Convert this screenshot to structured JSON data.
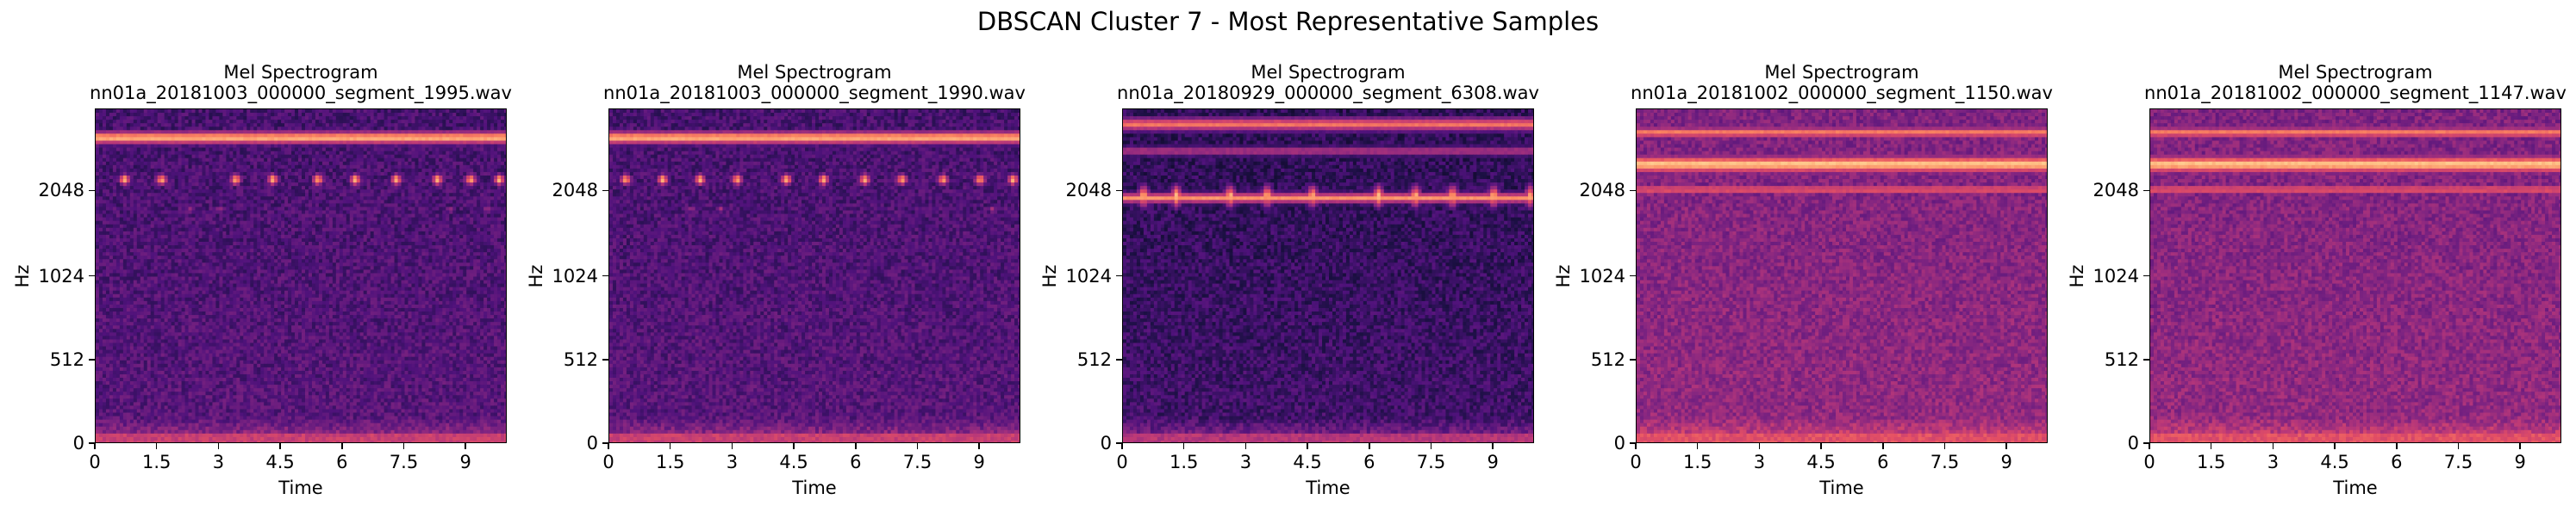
{
  "figure": {
    "suptitle": "DBSCAN Cluster 7 - Most Representative Samples"
  },
  "chart_data": [
    {
      "type": "heatmap",
      "title": "Mel Spectrogram",
      "subtitle": "nn01a_20181003_000000_segment_1995.wav",
      "xlabel": "Time",
      "ylabel": "Hz",
      "xticks": [
        "0",
        "1.5",
        "3",
        "4.5",
        "6",
        "7.5",
        "9"
      ],
      "xtick_values": [
        0,
        1.5,
        3,
        4.5,
        6,
        7.5,
        9
      ],
      "xlim": [
        0,
        10
      ],
      "yticks": [
        "0",
        "512",
        "1024",
        "2048"
      ],
      "colormap": "magma",
      "bands": [
        {
          "y": 0.915,
          "h": 0.045,
          "intensity": 0.92,
          "pulsed": false
        },
        {
          "y": 0.79,
          "h": 0.04,
          "intensity": 0.97,
          "pulsed": true,
          "pulse_times": [
            0.7,
            1.6,
            3.4,
            4.3,
            5.4,
            6.3,
            7.3,
            8.3,
            9.1,
            9.8
          ]
        },
        {
          "y": 0.7,
          "h": 0.02,
          "intensity": 0.55,
          "pulsed": true,
          "pulse_times": [
            2.3,
            3.0,
            8.6,
            9.5
          ]
        }
      ],
      "background": 0.28,
      "low_band": 0.55
    },
    {
      "type": "heatmap",
      "title": "Mel Spectrogram",
      "subtitle": "nn01a_20181003_000000_segment_1990.wav",
      "xlabel": "Time",
      "ylabel": "Hz",
      "xticks": [
        "0",
        "1.5",
        "3",
        "4.5",
        "6",
        "7.5",
        "9"
      ],
      "xtick_values": [
        0,
        1.5,
        3,
        4.5,
        6,
        7.5,
        9
      ],
      "xlim": [
        0,
        10
      ],
      "yticks": [
        "0",
        "512",
        "1024",
        "2048"
      ],
      "colormap": "magma",
      "bands": [
        {
          "y": 0.915,
          "h": 0.045,
          "intensity": 0.92,
          "pulsed": false
        },
        {
          "y": 0.79,
          "h": 0.04,
          "intensity": 0.97,
          "pulsed": true,
          "pulse_times": [
            0.4,
            1.3,
            2.2,
            3.1,
            4.3,
            5.2,
            6.2,
            7.1,
            8.1,
            9.0,
            9.8
          ]
        },
        {
          "y": 0.7,
          "h": 0.02,
          "intensity": 0.55,
          "pulsed": true,
          "pulse_times": [
            2.0,
            2.7,
            9.3
          ]
        }
      ],
      "background": 0.28,
      "low_band": 0.55
    },
    {
      "type": "heatmap",
      "title": "Mel Spectrogram",
      "subtitle": "nn01a_20180929_000000_segment_6308.wav",
      "xlabel": "Time",
      "ylabel": "Hz",
      "xticks": [
        "0",
        "1.5",
        "3",
        "4.5",
        "6",
        "7.5",
        "9"
      ],
      "xtick_values": [
        0,
        1.5,
        3,
        4.5,
        6,
        7.5,
        9
      ],
      "xlim": [
        0,
        10
      ],
      "yticks": [
        "0",
        "512",
        "1024",
        "2048"
      ],
      "colormap": "magma",
      "bands": [
        {
          "y": 0.955,
          "h": 0.05,
          "intensity": 0.75,
          "pulsed": false
        },
        {
          "y": 0.875,
          "h": 0.03,
          "intensity": 0.55,
          "pulsed": false
        },
        {
          "y": 0.735,
          "h": 0.035,
          "intensity": 0.8,
          "pulsed": false
        },
        {
          "y": 0.74,
          "h": 0.09,
          "intensity": 0.99,
          "pulsed": true,
          "pulse_times": [
            0.5,
            1.3,
            2.6,
            3.5,
            4.6,
            6.2,
            7.1,
            8.0,
            9.0,
            9.9
          ]
        }
      ],
      "background": 0.22,
      "low_band": 0.5
    },
    {
      "type": "heatmap",
      "title": "Mel Spectrogram",
      "subtitle": "nn01a_20181002_000000_segment_1150.wav",
      "xlabel": "Time",
      "ylabel": "Hz",
      "xticks": [
        "0",
        "1.5",
        "3",
        "4.5",
        "6",
        "7.5",
        "9"
      ],
      "xtick_values": [
        0,
        1.5,
        3,
        4.5,
        6,
        7.5,
        9
      ],
      "xlim": [
        0,
        10
      ],
      "yticks": [
        "0",
        "512",
        "1024",
        "2048"
      ],
      "colormap": "magma",
      "bands": [
        {
          "y": 0.93,
          "h": 0.04,
          "intensity": 0.78,
          "pulsed": false
        },
        {
          "y": 0.835,
          "h": 0.07,
          "intensity": 0.95,
          "pulsed": false
        },
        {
          "y": 0.76,
          "h": 0.025,
          "intensity": 0.75,
          "pulsed": false
        },
        {
          "y": 0.7,
          "h": 0.02,
          "intensity": 0.55,
          "pulsed": true,
          "pulse_times": [
            0.3,
            1.2,
            2.1,
            3.0,
            3.9,
            4.8,
            5.7,
            6.6,
            7.5,
            8.4,
            9.3
          ]
        }
      ],
      "background": 0.42,
      "low_band": 0.62
    },
    {
      "type": "heatmap",
      "title": "Mel Spectrogram",
      "subtitle": "nn01a_20181002_000000_segment_1147.wav",
      "xlabel": "Time",
      "ylabel": "Hz",
      "xticks": [
        "0",
        "1.5",
        "3",
        "4.5",
        "6",
        "7.5",
        "9"
      ],
      "xtick_values": [
        0,
        1.5,
        3,
        4.5,
        6,
        7.5,
        9
      ],
      "xlim": [
        0,
        10
      ],
      "yticks": [
        "0",
        "512",
        "1024",
        "2048"
      ],
      "colormap": "magma",
      "bands": [
        {
          "y": 0.93,
          "h": 0.04,
          "intensity": 0.78,
          "pulsed": false
        },
        {
          "y": 0.835,
          "h": 0.07,
          "intensity": 0.95,
          "pulsed": false
        },
        {
          "y": 0.76,
          "h": 0.025,
          "intensity": 0.75,
          "pulsed": false
        },
        {
          "y": 0.7,
          "h": 0.02,
          "intensity": 0.55,
          "pulsed": true,
          "pulse_times": [
            0.3,
            1.2,
            2.1,
            3.0,
            3.9,
            4.8,
            5.7,
            6.6,
            7.5,
            8.4,
            9.3
          ]
        }
      ],
      "background": 0.42,
      "low_band": 0.62
    }
  ]
}
